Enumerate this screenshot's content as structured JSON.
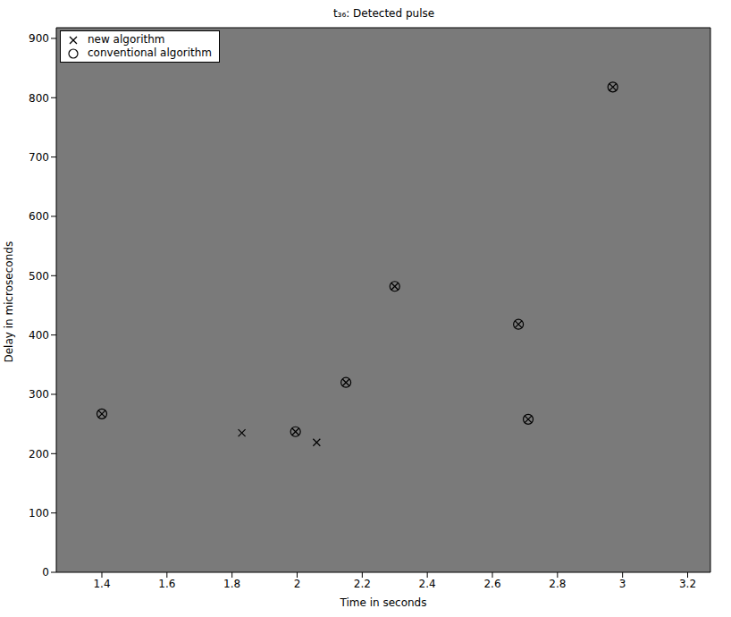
{
  "chart_data": {
    "type": "scatter",
    "title": "t₃₆: Detected pulse",
    "x_label": "Time in seconds",
    "y_label": "Delay in microseconds",
    "xlim": [
      1.26,
      3.27
    ],
    "xticks": [
      1.4,
      1.6,
      1.8,
      2,
      2.2,
      2.4,
      2.6,
      2.8,
      3,
      3.2
    ],
    "ylim": [
      0,
      918
    ],
    "yticks": [
      0,
      100,
      200,
      300,
      400,
      500,
      600,
      700,
      800,
      900
    ],
    "grid": false,
    "legend": "upper left",
    "series": [
      {
        "name": "new algorithm",
        "color": "#000000",
        "marker": "x",
        "x": [
          1.4,
          1.83,
          1.995,
          2.06,
          2.15,
          2.3,
          2.68,
          2.71,
          2.97
        ],
        "values": [
          267,
          235,
          237,
          219,
          320,
          482,
          418,
          258,
          818
        ]
      },
      {
        "name": "conventional algorithm",
        "color": "#000000",
        "marker": "circle",
        "x": [
          1.4,
          1.995,
          2.15,
          2.3,
          2.68,
          2.71,
          2.97
        ],
        "values": [
          267,
          237,
          320,
          482,
          418,
          258,
          818
        ]
      }
    ]
  }
}
